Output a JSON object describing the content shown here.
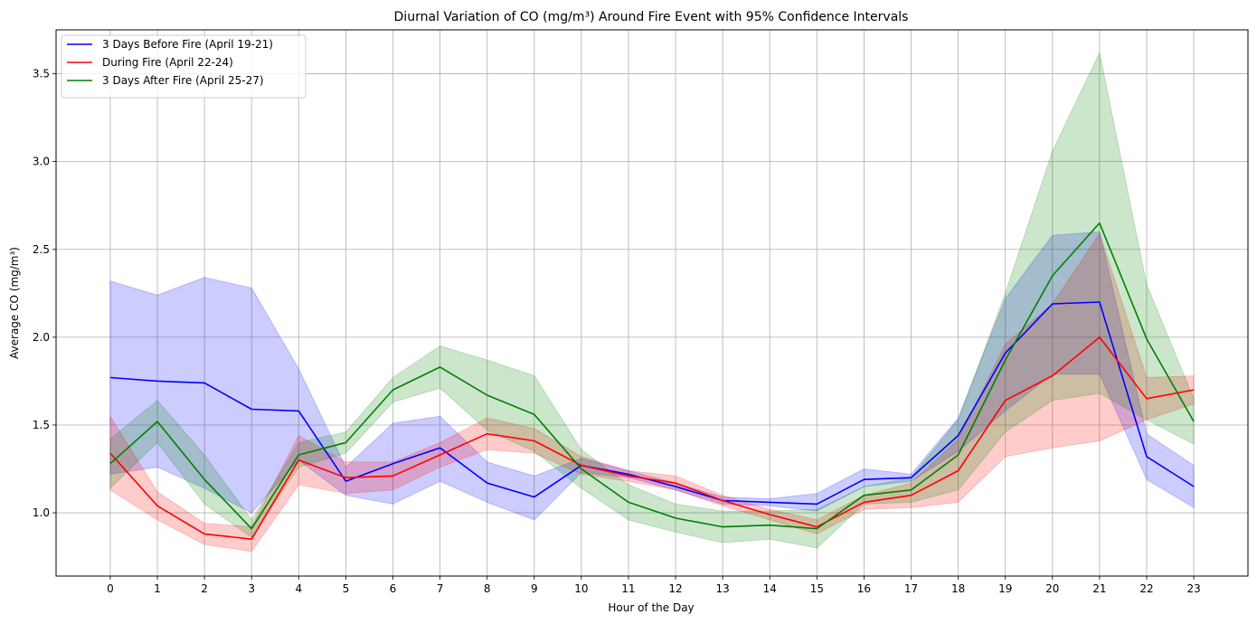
{
  "chart_data": {
    "type": "line",
    "title": "Diurnal Variation of CO (mg/m³) Around Fire Event with 95% Confidence Intervals",
    "xlabel": "Hour of the Day",
    "ylabel": "Average CO (mg/m³)",
    "x": [
      0,
      1,
      2,
      3,
      4,
      5,
      6,
      7,
      8,
      9,
      10,
      11,
      12,
      13,
      14,
      15,
      16,
      17,
      18,
      19,
      20,
      21,
      22,
      23
    ],
    "x_tick_labels": [
      "0",
      "1",
      "2",
      "3",
      "4",
      "5",
      "6",
      "7",
      "8",
      "9",
      "10",
      "11",
      "12",
      "13",
      "14",
      "15",
      "16",
      "17",
      "18",
      "19",
      "20",
      "21",
      "22",
      "23"
    ],
    "xlim": [
      -1.15,
      24.15
    ],
    "ylim": [
      0.64,
      3.75
    ],
    "y_ticks": [
      1.0,
      1.5,
      2.0,
      2.5,
      3.0,
      3.5
    ],
    "y_tick_labels": [
      "1.0",
      "1.5",
      "2.0",
      "2.5",
      "3.0",
      "3.5"
    ],
    "grid": true,
    "legend_position": "top-left",
    "series": [
      {
        "name": "3 Days Before Fire (April 19-21)",
        "color": "#0000ff",
        "values": [
          1.77,
          1.75,
          1.74,
          1.59,
          1.58,
          1.18,
          1.28,
          1.37,
          1.17,
          1.09,
          1.27,
          1.22,
          1.15,
          1.07,
          1.06,
          1.05,
          1.19,
          1.2,
          1.44,
          1.91,
          2.19,
          2.2,
          1.32,
          1.15
        ],
        "ci_lower": [
          1.22,
          1.26,
          1.14,
          1.0,
          1.3,
          1.1,
          1.05,
          1.18,
          1.06,
          0.96,
          1.23,
          1.2,
          1.13,
          1.05,
          1.04,
          1.01,
          1.15,
          1.18,
          1.35,
          1.58,
          1.79,
          1.79,
          1.19,
          1.03
        ],
        "ci_upper": [
          2.32,
          2.24,
          2.34,
          2.28,
          1.82,
          1.26,
          1.51,
          1.55,
          1.29,
          1.21,
          1.31,
          1.24,
          1.17,
          1.09,
          1.08,
          1.11,
          1.25,
          1.22,
          1.54,
          2.22,
          2.58,
          2.6,
          1.45,
          1.27
        ]
      },
      {
        "name": "During Fire (April 22-24)",
        "color": "#ff0000",
        "values": [
          1.34,
          1.04,
          0.88,
          0.85,
          1.3,
          1.2,
          1.21,
          1.33,
          1.45,
          1.41,
          1.27,
          1.21,
          1.17,
          1.07,
          0.99,
          0.92,
          1.06,
          1.1,
          1.24,
          1.64,
          1.78,
          2.0,
          1.65,
          1.7
        ],
        "ci_lower": [
          1.13,
          0.96,
          0.82,
          0.78,
          1.16,
          1.11,
          1.13,
          1.26,
          1.36,
          1.34,
          1.22,
          1.18,
          1.13,
          1.04,
          0.96,
          0.88,
          1.02,
          1.03,
          1.06,
          1.32,
          1.37,
          1.41,
          1.53,
          1.62
        ],
        "ci_upper": [
          1.55,
          1.12,
          0.94,
          0.92,
          1.44,
          1.29,
          1.29,
          1.4,
          1.54,
          1.48,
          1.32,
          1.24,
          1.21,
          1.1,
          1.02,
          0.96,
          1.1,
          1.17,
          1.42,
          1.96,
          2.19,
          2.59,
          1.77,
          1.78
        ]
      },
      {
        "name": "3 Days After Fire (April 25-27)",
        "color": "#008000",
        "values": [
          1.28,
          1.52,
          1.19,
          0.91,
          1.33,
          1.4,
          1.7,
          1.83,
          1.67,
          1.56,
          1.25,
          1.06,
          0.97,
          0.92,
          0.93,
          0.91,
          1.1,
          1.13,
          1.33,
          1.87,
          2.35,
          2.65,
          1.99,
          1.52
        ],
        "ci_lower": [
          1.14,
          1.4,
          1.05,
          0.86,
          1.26,
          1.34,
          1.63,
          1.71,
          1.47,
          1.35,
          1.14,
          0.96,
          0.89,
          0.83,
          0.85,
          0.8,
          1.05,
          1.06,
          1.13,
          1.46,
          1.64,
          1.68,
          1.53,
          1.39
        ],
        "ci_upper": [
          1.42,
          1.64,
          1.33,
          0.96,
          1.4,
          1.46,
          1.77,
          1.95,
          1.87,
          1.78,
          1.36,
          1.16,
          1.05,
          1.01,
          1.01,
          1.02,
          1.15,
          1.2,
          1.53,
          2.25,
          3.06,
          3.62,
          2.3,
          1.65
        ]
      }
    ]
  }
}
